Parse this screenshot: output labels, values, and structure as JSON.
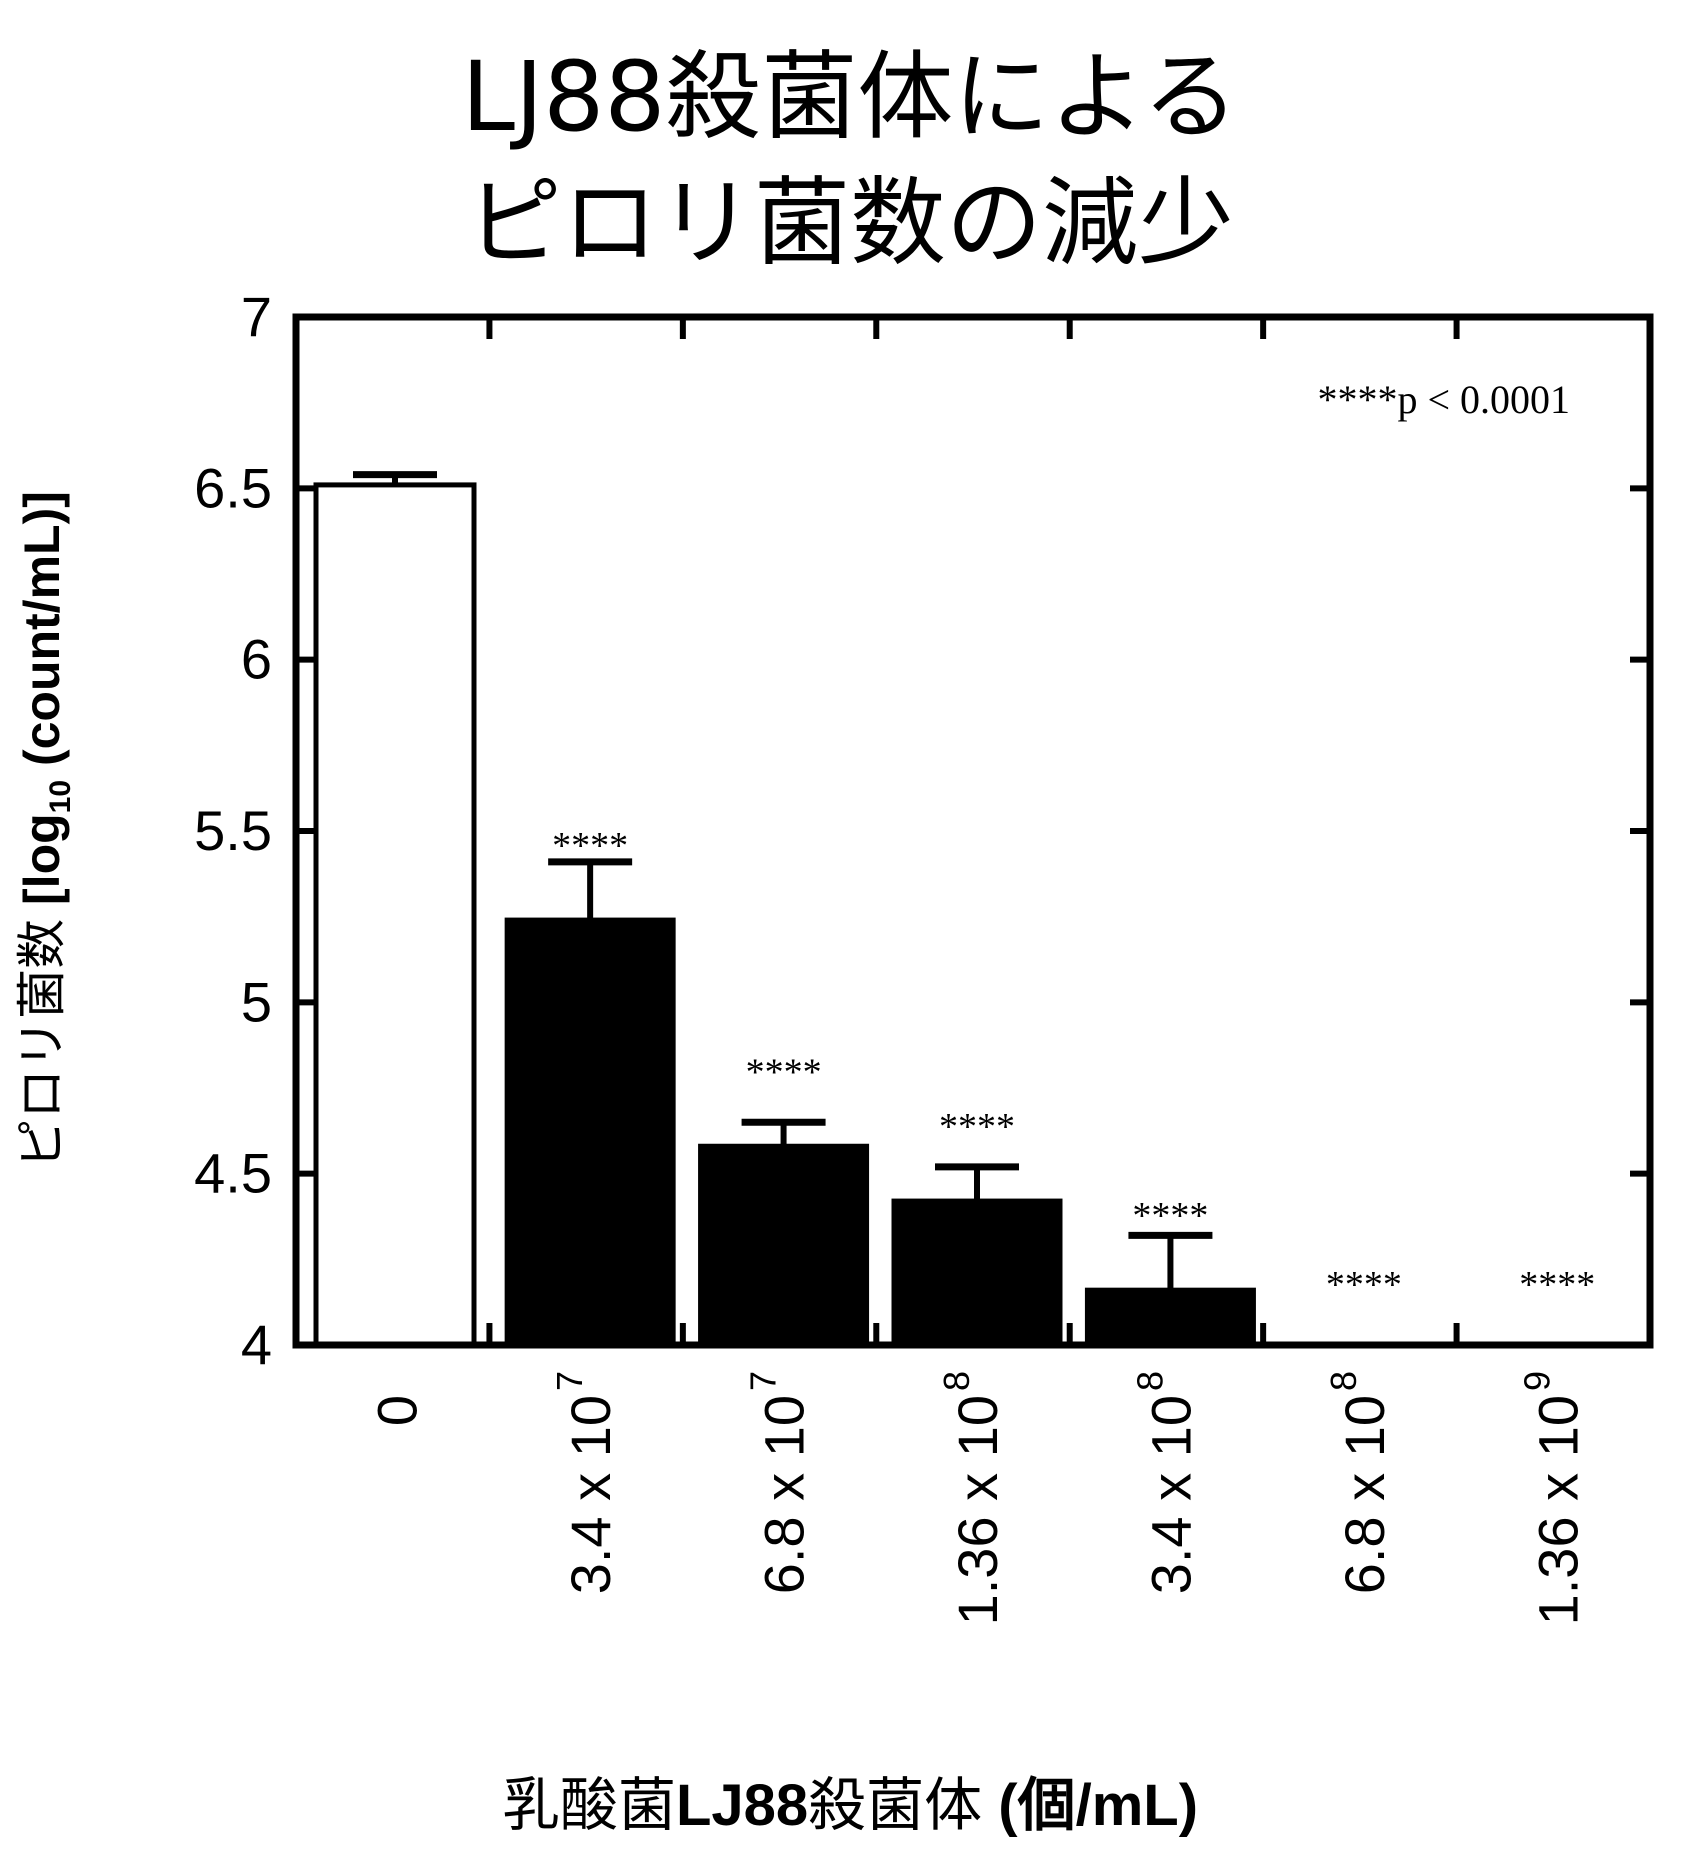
{
  "title": {
    "line1": "LJ88殺菌体による",
    "line2": "ピロリ菌数の減少"
  },
  "axes": {
    "ylabel_prefix": "ピロリ菌数 ",
    "ylabel_bold_a": "[log",
    "ylabel_sub": "10",
    "ylabel_bold_b": " (count/mL)]",
    "xlabel_prefix": "乳酸菌",
    "xlabel_bold": "LJ88",
    "xlabel_suffix": "殺菌体 ",
    "xlabel_unit": "(個/mL)"
  },
  "annotation": "****p < 0.0001",
  "chart_data": {
    "type": "bar",
    "title": "LJ88殺菌体によるピロリ菌数の減少",
    "xlabel": "乳酸菌LJ88殺菌体 (個/mL)",
    "ylabel": "ピロリ菌数 [log10 (count/mL)]",
    "categories": [
      "0",
      "3.4 x 10^7",
      "6.8 x 10^7",
      "1.36 x 10^8",
      "3.4 x 10^8",
      "6.8 x 10^8",
      "1.36 x 10^9"
    ],
    "category_labels": [
      {
        "base": "0",
        "exp": ""
      },
      {
        "base": "3.4 x 10",
        "exp": "7"
      },
      {
        "base": "6.8 x 10",
        "exp": "7"
      },
      {
        "base": "1.36 x 10",
        "exp": "8"
      },
      {
        "base": "3.4 x 10",
        "exp": "8"
      },
      {
        "base": "6.8 x 10",
        "exp": "8"
      },
      {
        "base": "1.36 x 10",
        "exp": "9"
      }
    ],
    "values": [
      6.51,
      5.24,
      4.58,
      4.42,
      4.16,
      4.0,
      4.0
    ],
    "error_upper": [
      6.54,
      5.41,
      4.65,
      4.52,
      4.32,
      4.0,
      4.0
    ],
    "significance": [
      "",
      "****",
      "****",
      "****",
      "****",
      "****",
      "****"
    ],
    "bar_fill": [
      "#ffffff",
      "#000000",
      "#000000",
      "#000000",
      "#000000",
      "#000000",
      "#000000"
    ],
    "ylim": [
      4,
      7
    ],
    "yticks": [
      4,
      4.5,
      5,
      5.5,
      6,
      6.5,
      7
    ],
    "ytick_labels": [
      "4",
      "4.5",
      "5",
      "5.5",
      "6",
      "6.5",
      "7"
    ],
    "annotation": "****p < 0.0001",
    "grid": false,
    "legend": null
  }
}
